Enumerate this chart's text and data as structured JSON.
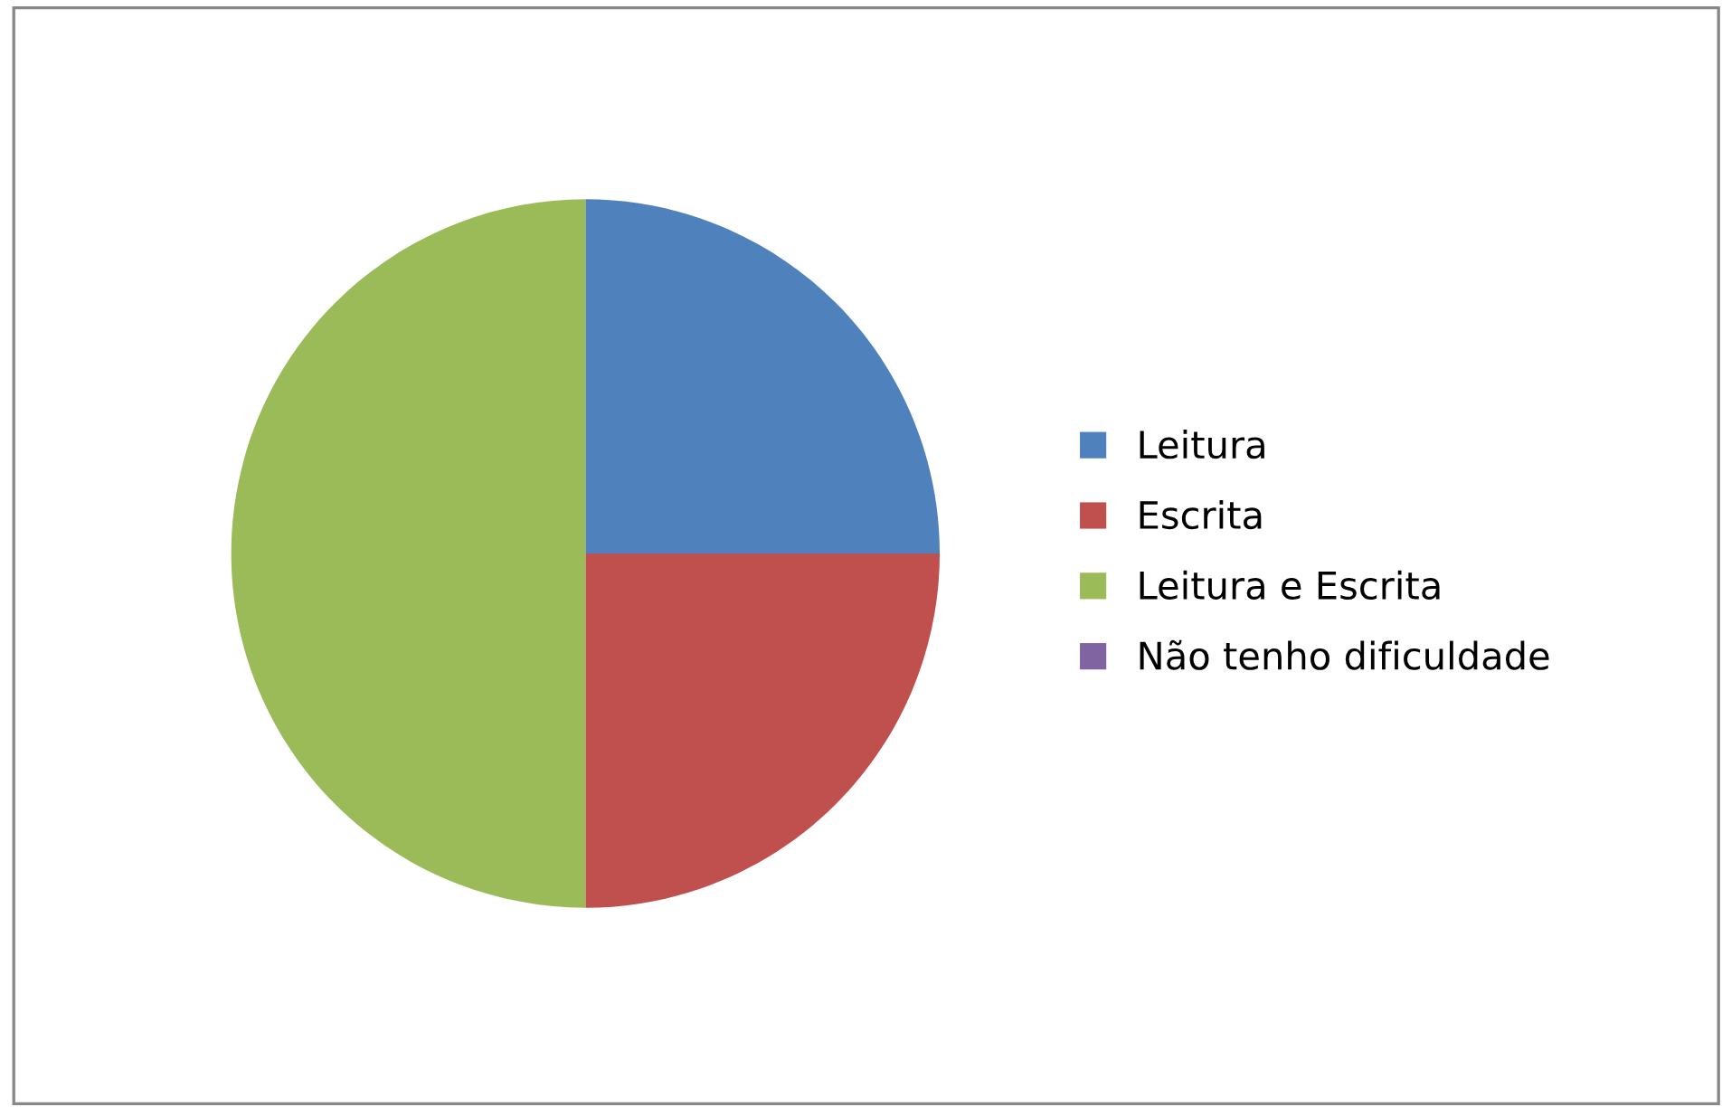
{
  "chart_data": {
    "type": "pie",
    "categories": [
      "Leitura",
      "Escrita",
      "Leitura e Escrita",
      "Não tenho dificuldade"
    ],
    "values": [
      25,
      25,
      50,
      0
    ],
    "colors": [
      "#4f81bd",
      "#c0504d",
      "#9bbb59",
      "#8064a2"
    ],
    "legend": "right"
  }
}
